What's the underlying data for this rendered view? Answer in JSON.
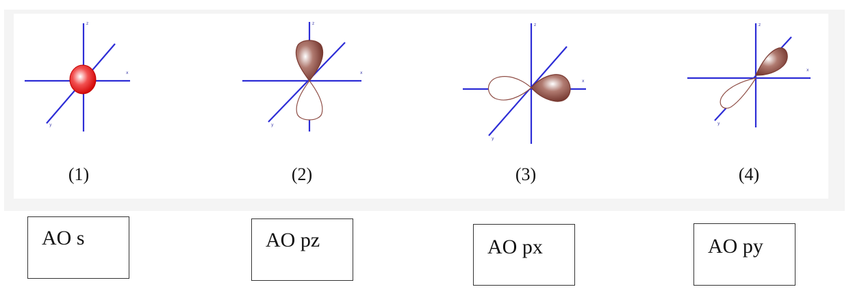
{
  "orbitals": [
    {
      "caption": "(1)",
      "label": "AO s"
    },
    {
      "caption": "(2)",
      "label": "AO pz"
    },
    {
      "caption": "(3)",
      "label": "AO px"
    },
    {
      "caption": "(4)",
      "label": "AO py"
    }
  ],
  "colors": {
    "axis": "#2d2dd6",
    "s_orbital": "#e81010",
    "p_lobe_fill": "#8a4a40",
    "p_lobe_outline": "#8f4e46"
  }
}
